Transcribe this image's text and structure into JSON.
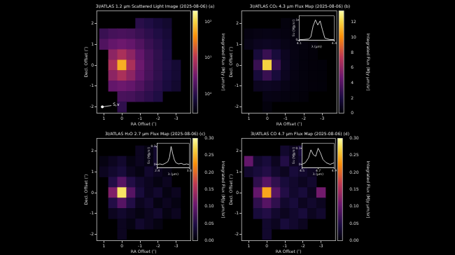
{
  "chart_data": [
    {
      "type": "heatmap",
      "title": "3I/ATLAS 1.2 μm Scattered Light Image (2025-08-06)",
      "panel_label": "(a)",
      "x_label": "RA Offset (″)",
      "y_label": "Decl. Offset (″)",
      "xlim": [
        1.4,
        -3.8
      ],
      "ylim": [
        -2.3,
        2.6
      ],
      "xticks": [
        1,
        0,
        -1,
        -2,
        -3
      ],
      "yticks": [
        -2,
        -1,
        0,
        1,
        2
      ],
      "grid": false,
      "x": [
        1,
        0.5,
        0,
        -0.5,
        -1,
        -1.5,
        -2,
        -2.5,
        -3,
        -3.5
      ],
      "y": [
        2,
        1.5,
        1,
        0.5,
        0,
        -0.5,
        -1,
        -1.5,
        -2
      ],
      "z": [
        [
          null,
          null,
          null,
          null,
          1.0,
          0.85,
          0.7,
          0.6,
          null,
          null
        ],
        [
          1.3,
          1.6,
          1.7,
          1.6,
          1.3,
          1.05,
          0.85,
          0.68,
          null,
          null
        ],
        [
          1.9,
          2.6,
          3.0,
          2.6,
          1.9,
          1.3,
          1.0,
          0.75,
          null,
          null
        ],
        [
          null,
          5,
          8,
          5,
          2.6,
          1.6,
          1.1,
          0.8,
          null,
          null
        ],
        [
          null,
          8,
          60,
          8,
          3,
          1.7,
          1.1,
          0.85,
          0.65,
          null
        ],
        [
          null,
          5,
          8,
          5,
          2.6,
          1.6,
          1.1,
          0.8,
          0.65,
          null
        ],
        [
          null,
          2.6,
          3.0,
          2.6,
          1.9,
          1.3,
          1.0,
          0.75,
          0.6,
          null
        ],
        [
          null,
          null,
          1.7,
          1.6,
          1.3,
          1.05,
          0.85,
          null,
          null,
          null
        ],
        [
          null,
          null,
          1.1,
          null,
          null,
          null,
          null,
          null,
          null,
          null
        ]
      ],
      "colorbar": {
        "label": "Integrated Flux (MJy μm/sr)",
        "log": true,
        "lim": [
          0.3,
          200
        ],
        "ticks": [
          {
            "value": 1,
            "label": "10⁰"
          },
          {
            "value": 10,
            "label": "10¹"
          },
          {
            "value": 100,
            "label": "10²"
          }
        ]
      },
      "annotations": [
        {
          "text": "S,v"
        }
      ]
    },
    {
      "type": "heatmap",
      "title": "3I/ATLAS CO₂ 4.3 μm Flux Map (2025-08-06)",
      "panel_label": "(b)",
      "x_label": "RA Offset (″)",
      "y_label": "Decl. Offset (″)",
      "xlim": [
        1.4,
        -3.8
      ],
      "ylim": [
        -2.3,
        2.6
      ],
      "xticks": [
        1,
        0,
        -1,
        -2,
        -3
      ],
      "yticks": [
        -2,
        -1,
        0,
        1,
        2
      ],
      "grid": false,
      "x": [
        1,
        0.5,
        0,
        -0.5,
        -1,
        -1.5,
        -2,
        -2.5,
        -3,
        -3.5
      ],
      "y": [
        2,
        1.5,
        1,
        0.5,
        0,
        -0.5,
        -1,
        -1.5,
        -2
      ],
      "z": [
        [
          null,
          null,
          null,
          null,
          0.3,
          0.2,
          0.2,
          0.15,
          null,
          null
        ],
        [
          0.4,
          0.5,
          0.55,
          0.5,
          0.4,
          0.3,
          0.2,
          0.2,
          null,
          null
        ],
        [
          0.6,
          0.9,
          1.0,
          0.9,
          0.6,
          0.4,
          0.3,
          0.2,
          null,
          null
        ],
        [
          null,
          1.8,
          3,
          1.8,
          0.9,
          0.5,
          0.3,
          0.2,
          null,
          null
        ],
        [
          null,
          3,
          12,
          3,
          1.0,
          0.55,
          0.3,
          0.2,
          0.15,
          null
        ],
        [
          null,
          1.8,
          3,
          1.8,
          0.9,
          0.5,
          0.3,
          0.2,
          0.15,
          null
        ],
        [
          null,
          0.9,
          1.0,
          0.9,
          0.6,
          0.4,
          0.3,
          0.2,
          0.15,
          null
        ],
        [
          null,
          null,
          0.55,
          0.5,
          0.4,
          0.3,
          0.2,
          null,
          null,
          null
        ],
        [
          null,
          null,
          0.3,
          null,
          null,
          null,
          null,
          null,
          null,
          null
        ]
      ],
      "colorbar": {
        "label": "Integrated Flux (MJy μm/sr)",
        "log": false,
        "lim": [
          0,
          13.5
        ],
        "ticks": [
          0,
          2,
          4,
          6,
          8,
          10,
          12
        ]
      },
      "inset": {
        "x_label": "λ (μm)",
        "y_label": "Sν (MJy/sr)",
        "xlim": [
          4.1,
          4.4
        ],
        "ylim": [
          0,
          1.2
        ],
        "xticks": [
          4.1,
          4.4
        ],
        "yticks": [
          0,
          1
        ],
        "x": [
          4.1,
          4.14,
          4.18,
          4.2,
          4.22,
          4.24,
          4.26,
          4.28,
          4.3,
          4.32,
          4.36,
          4.4
        ],
        "values": [
          0.02,
          0.03,
          0.05,
          0.15,
          0.7,
          1.0,
          0.75,
          0.95,
          0.5,
          0.1,
          0.03,
          0.02
        ]
      }
    },
    {
      "type": "heatmap",
      "title": "3I/ATLAS H₂O 2.7 μm Flux Map (2025-08-06)",
      "panel_label": "(c)",
      "x_label": "RA Offset (″)",
      "y_label": "Decl. Offset (″)",
      "xlim": [
        1.4,
        -3.8
      ],
      "ylim": [
        -2.3,
        2.6
      ],
      "xticks": [
        1,
        0,
        -1,
        -2,
        -3
      ],
      "yticks": [
        -2,
        -1,
        0,
        1,
        2
      ],
      "grid": false,
      "x": [
        1,
        0.5,
        0,
        -0.5,
        -1,
        -1.5,
        -2,
        -2.5,
        -3,
        -3.5
      ],
      "y": [
        2,
        1.5,
        1,
        0.5,
        0,
        -0.5,
        -1,
        -1.5,
        -2
      ],
      "z": [
        [
          null,
          null,
          null,
          null,
          0.02,
          0.01,
          0.03,
          0.02,
          null,
          null
        ],
        [
          0.01,
          0.02,
          0.03,
          0.01,
          0.02,
          0.01,
          0.03,
          0.02,
          null,
          null
        ],
        [
          0.02,
          0.03,
          0.04,
          0.02,
          0.01,
          0.03,
          0.02,
          0.01,
          null,
          null
        ],
        [
          null,
          0.05,
          0.09,
          0.05,
          0.03,
          0.02,
          0.01,
          0.02,
          null,
          null
        ],
        [
          null,
          0.12,
          0.28,
          0.09,
          0.04,
          0.02,
          0.03,
          0.01,
          0.02,
          null
        ],
        [
          null,
          0.05,
          0.09,
          0.05,
          0.02,
          0.03,
          0.01,
          0.02,
          0.01,
          null
        ],
        [
          null,
          0.02,
          0.03,
          0.02,
          0.01,
          0.02,
          0.03,
          0.01,
          0.02,
          null
        ],
        [
          null,
          null,
          0.02,
          0.01,
          0.03,
          0.02,
          0.01,
          null,
          null,
          null
        ],
        [
          null,
          null,
          0.02,
          null,
          null,
          null,
          null,
          null,
          null,
          null
        ]
      ],
      "colorbar": {
        "label": "Integrated Flux (MJy μm/sr)",
        "log": false,
        "lim": [
          0,
          0.3
        ],
        "ticks": [
          {
            "value": 0,
            "label": "0.00"
          },
          0.05,
          {
            "value": 0.1,
            "label": "0.10"
          },
          0.15,
          {
            "value": 0.2,
            "label": "0.20"
          },
          0.25,
          {
            "value": 0.3,
            "label": "0.30"
          }
        ]
      },
      "inset": {
        "x_label": "λ (μm)",
        "y_label": "Sν (MJy/sr)",
        "xlim": [
          2.4,
          3.0
        ],
        "ylim": [
          -0.05,
          0.35
        ],
        "xticks": [
          2.4,
          {
            "value": 3,
            "label": "3.0"
          }
        ],
        "yticks": [
          0,
          0.3
        ],
        "x": [
          2.4,
          2.45,
          2.5,
          2.55,
          2.6,
          2.63,
          2.66,
          2.69,
          2.72,
          2.75,
          2.8,
          2.85,
          2.9,
          2.95,
          3.0
        ],
        "values": [
          0.0,
          0.01,
          0.0,
          0.02,
          0.05,
          0.12,
          0.3,
          0.18,
          0.08,
          0.03,
          0.01,
          0.02,
          0.0,
          0.01,
          0.0
        ]
      }
    },
    {
      "type": "heatmap",
      "title": "3I/ATLAS CO 4.7 μm Flux Map (2025-08-06)",
      "panel_label": "(d)",
      "x_label": "RA Offset (″)",
      "y_label": "Decl. Offset (″)",
      "xlim": [
        1.4,
        -3.8
      ],
      "ylim": [
        -2.3,
        2.6
      ],
      "xticks": [
        1,
        0,
        -1,
        -2,
        -3
      ],
      "yticks": [
        -2,
        -1,
        0,
        1,
        2
      ],
      "grid": false,
      "x": [
        1,
        0.5,
        0,
        -0.5,
        -1,
        -1.5,
        -2,
        -2.5,
        -3,
        -3.5
      ],
      "y": [
        2,
        1.5,
        1,
        0.5,
        0,
        -0.5,
        -1,
        -1.5,
        -2
      ],
      "z": [
        [
          null,
          null,
          null,
          null,
          0.03,
          0.02,
          0.04,
          0.02,
          null,
          null
        ],
        [
          0.1,
          0.03,
          0.04,
          0.02,
          0.05,
          0.02,
          0.03,
          0.02,
          null,
          null
        ],
        [
          0.03,
          0.04,
          0.05,
          0.03,
          0.02,
          0.04,
          0.03,
          0.02,
          null,
          null
        ],
        [
          null,
          0.06,
          0.09,
          0.06,
          0.04,
          0.03,
          0.02,
          0.03,
          null,
          null
        ],
        [
          null,
          0.1,
          0.24,
          0.09,
          0.05,
          0.03,
          0.04,
          0.02,
          0.11,
          null
        ],
        [
          null,
          0.06,
          0.09,
          0.06,
          0.03,
          0.04,
          0.02,
          0.03,
          0.02,
          null
        ],
        [
          null,
          0.04,
          0.05,
          0.03,
          0.02,
          0.03,
          0.04,
          0.02,
          0.03,
          null
        ],
        [
          null,
          null,
          0.03,
          0.02,
          0.04,
          0.03,
          0.02,
          null,
          null,
          null
        ],
        [
          null,
          null,
          0.03,
          null,
          null,
          null,
          null,
          null,
          null,
          null
        ]
      ],
      "colorbar": {
        "label": "Integrated Flux (MJy μm/sr)",
        "log": false,
        "lim": [
          0,
          0.3
        ],
        "ticks": [
          {
            "value": 0,
            "label": "0.00"
          },
          0.05,
          {
            "value": 0.1,
            "label": "0.10"
          },
          0.15,
          {
            "value": 0.2,
            "label": "0.20"
          },
          0.25,
          {
            "value": 0.3,
            "label": "0.30"
          }
        ]
      },
      "inset": {
        "x_label": "λ (μm)",
        "y_label": "Sν (MJy/sr)",
        "xlim": [
          4.5,
          4.9
        ],
        "ylim": [
          -0.02,
          0.13
        ],
        "xticks": [
          4.5,
          4.7,
          4.9
        ],
        "yticks": [
          0,
          0.1
        ],
        "x": [
          4.5,
          4.54,
          4.58,
          4.61,
          4.64,
          4.67,
          4.7,
          4.73,
          4.76,
          4.8,
          4.85,
          4.9
        ],
        "values": [
          0.0,
          0.01,
          0.04,
          0.09,
          0.06,
          0.05,
          0.1,
          0.07,
          0.03,
          0.01,
          0.0,
          0.01
        ]
      }
    }
  ]
}
